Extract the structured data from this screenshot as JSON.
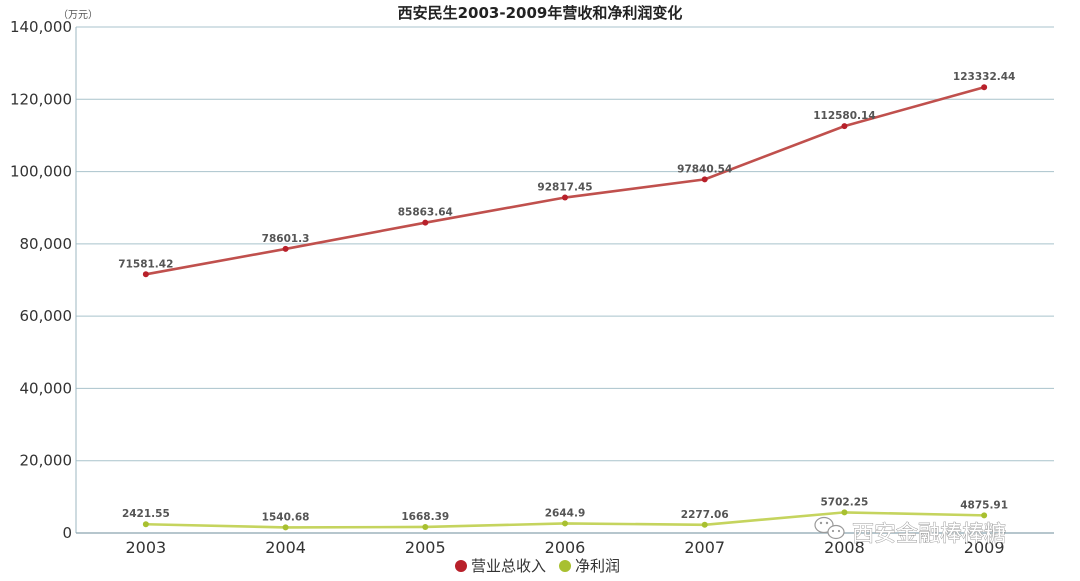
{
  "chart_data": {
    "type": "line",
    "title": "西安民生2003-2009年营收和净利润变化",
    "unit": "（万元）",
    "categories": [
      "2003",
      "2004",
      "2005",
      "2006",
      "2007",
      "2008",
      "2009"
    ],
    "ylim": [
      0,
      140000
    ],
    "yticks": [
      "0",
      "20,000",
      "40,000",
      "60,000",
      "80,000",
      "100,000",
      "120,000",
      "140,000"
    ],
    "ytick_values": [
      0,
      20000,
      40000,
      60000,
      80000,
      100000,
      120000,
      140000
    ],
    "grid": true,
    "legend_position": "bottom-center",
    "series": [
      {
        "name": "营业总收入",
        "color": "#c0504d",
        "marker_color": "#b8202a",
        "values": [
          71581.42,
          78601.3,
          85863.64,
          92817.45,
          97840.54,
          112580.14,
          123332.44
        ],
        "labels": [
          "71581.42",
          "78601.3",
          "85863.64",
          "92817.45",
          "97840.54",
          "112580.14",
          "123332.44"
        ]
      },
      {
        "name": "净利润",
        "color": "#c5d45e",
        "marker_color": "#a8c030",
        "values": [
          2421.55,
          1540.68,
          1668.39,
          2644.9,
          2277.06,
          5702.25,
          4875.91
        ],
        "labels": [
          "2421.55",
          "1540.68",
          "1668.39",
          "2644.9",
          "2277.06",
          "5702.25",
          "4875.91"
        ]
      }
    ]
  },
  "watermark": {
    "text": "西安金融棒棒糖",
    "icon": "wechat-icon"
  }
}
